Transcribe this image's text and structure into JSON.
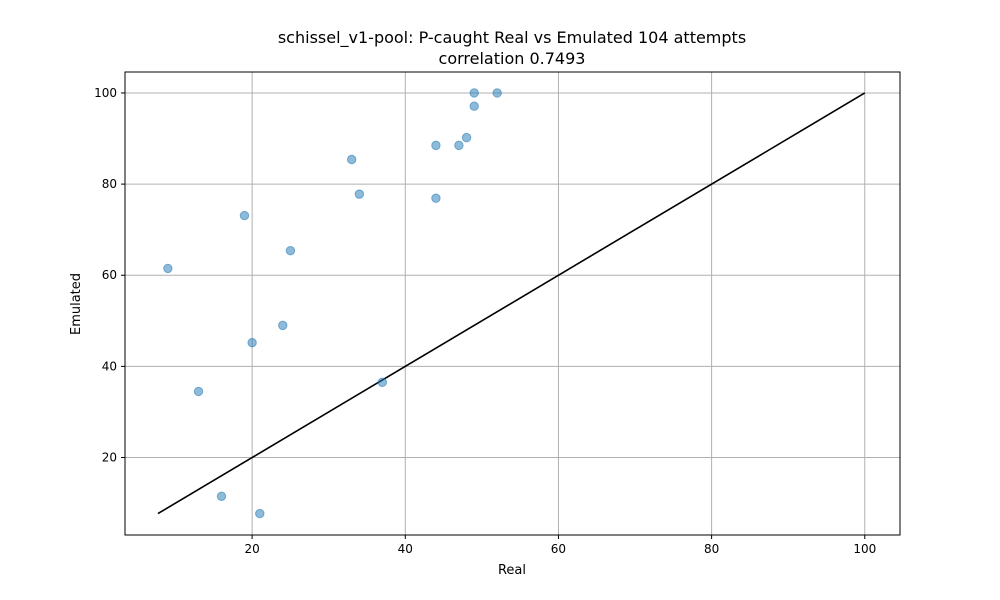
{
  "chart_data": {
    "type": "scatter",
    "title": "schissel_v1-pool: P-caught Real vs Emulated 104 attempts",
    "subtitle": "correlation 0.7493",
    "xlabel": "Real",
    "ylabel": "Emulated",
    "xlim": [
      3.4,
      104.6
    ],
    "ylim": [
      3.0,
      104.6
    ],
    "xticks": [
      20,
      40,
      60,
      80,
      100
    ],
    "yticks": [
      20,
      40,
      60,
      80,
      100
    ],
    "grid": true,
    "point_color": "#1f77b4",
    "line_color": "#000000",
    "points": [
      {
        "x": 9,
        "y": 61.5
      },
      {
        "x": 13,
        "y": 34.5
      },
      {
        "x": 16,
        "y": 11.5
      },
      {
        "x": 19,
        "y": 73.1
      },
      {
        "x": 20,
        "y": 45.2
      },
      {
        "x": 21,
        "y": 7.7
      },
      {
        "x": 24,
        "y": 49.0
      },
      {
        "x": 25,
        "y": 65.4
      },
      {
        "x": 33,
        "y": 85.4
      },
      {
        "x": 34,
        "y": 77.8
      },
      {
        "x": 37,
        "y": 36.5
      },
      {
        "x": 44,
        "y": 88.5
      },
      {
        "x": 44,
        "y": 76.9
      },
      {
        "x": 47,
        "y": 88.5
      },
      {
        "x": 48,
        "y": 90.2
      },
      {
        "x": 49,
        "y": 100
      },
      {
        "x": 49,
        "y": 97.1
      },
      {
        "x": 52,
        "y": 100
      }
    ],
    "reference_line": {
      "x": [
        7.7,
        100
      ],
      "y": [
        7.7,
        100
      ]
    }
  }
}
